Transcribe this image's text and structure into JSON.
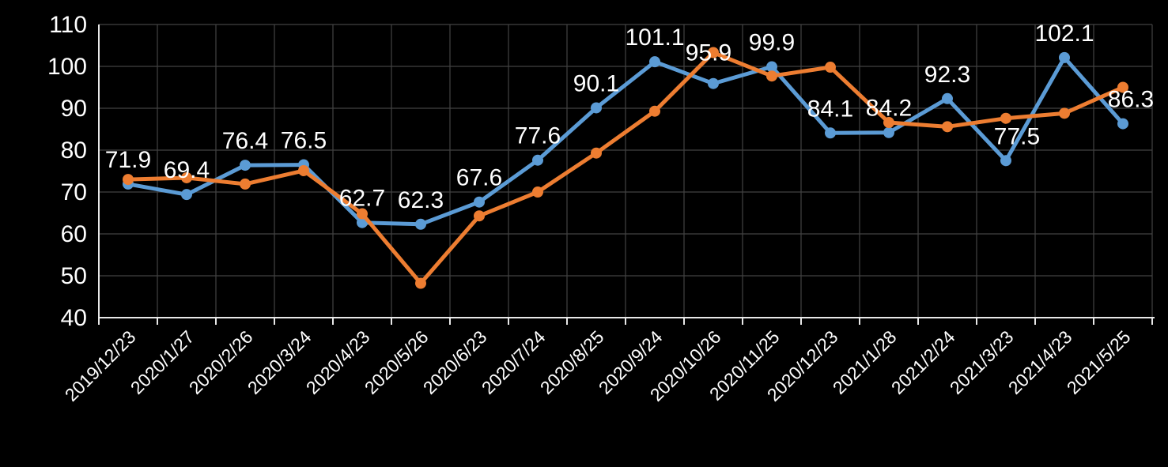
{
  "chart_data": {
    "type": "line",
    "title": "",
    "categories": [
      "2019/12/23",
      "2020/1/27",
      "2020/2/26",
      "2020/3/24",
      "2020/4/23",
      "2020/5/26",
      "2020/6/23",
      "2020/7/24",
      "2020/8/25",
      "2020/9/24",
      "2020/10/26",
      "2020/11/25",
      "2020/12/23",
      "2021/1/28",
      "2021/2/24",
      "2021/3/23",
      "2021/4/23",
      "2021/5/25"
    ],
    "series": [
      {
        "name": "blue",
        "color": "#5B9BD5",
        "values": [
          71.9,
          69.4,
          76.4,
          76.5,
          62.7,
          62.3,
          67.6,
          77.6,
          90.1,
          101.1,
          95.9,
          99.9,
          84.1,
          84.2,
          92.3,
          77.5,
          102.1,
          86.3
        ],
        "show_data_labels": true
      },
      {
        "name": "orange",
        "color": "#ED7D31",
        "values": [
          73.0,
          73.4,
          71.9,
          75.1,
          64.8,
          48.2,
          64.3,
          70.0,
          79.3,
          89.3,
          103.3,
          97.7,
          99.8,
          86.6,
          85.6,
          87.6,
          88.8,
          95.0
        ],
        "show_data_labels": false
      }
    ],
    "xlabel": "",
    "ylabel": "",
    "ylim": [
      40,
      110
    ],
    "yticks": [
      40,
      50,
      60,
      70,
      80,
      90,
      100,
      110
    ],
    "grid": true,
    "legend_position": "none",
    "background_color": "#000000",
    "gridline_color": "#424242",
    "axis_color": "#e8e8e8",
    "text_color": "#ffffff",
    "x_label_rotation_deg": -45,
    "label_offsets": {
      "10": {
        "dx": -6,
        "dy": -8
      },
      "15": {
        "dx": 14,
        "dy": 0
      },
      "17": {
        "dx": 10,
        "dy": 0
      }
    }
  }
}
